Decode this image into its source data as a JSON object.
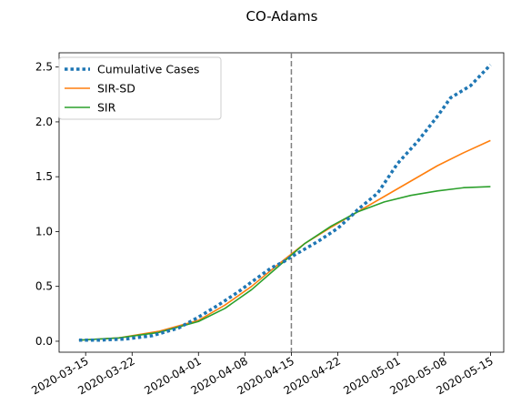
{
  "chart_data": {
    "type": "line",
    "title": "CO-Adams",
    "xlabel": "",
    "ylabel": "",
    "x_range": [
      "2020-03-11",
      "2020-05-17"
    ],
    "ylim": [
      -0.1,
      2.63
    ],
    "yticks": [
      0.0,
      0.5,
      1.0,
      1.5,
      2.0,
      2.5
    ],
    "ytick_labels": [
      "0.0",
      "0.5",
      "1.0",
      "1.5",
      "2.0",
      "2.5"
    ],
    "xticks": [
      "2020-03-15",
      "2020-03-22",
      "2020-04-01",
      "2020-04-08",
      "2020-04-15",
      "2020-04-22",
      "2020-05-01",
      "2020-05-08",
      "2020-05-15"
    ],
    "vline": "2020-04-15",
    "grid": false,
    "legend_position": "top-left",
    "series": [
      {
        "name": "Cumulative Cases",
        "style": "dotted",
        "color": "#1f77b4",
        "x": [
          "2020-03-14",
          "2020-03-17",
          "2020-03-21",
          "2020-03-25",
          "2020-03-29",
          "2020-04-01",
          "2020-04-04",
          "2020-04-07",
          "2020-04-09",
          "2020-04-12",
          "2020-04-14",
          "2020-04-15",
          "2020-04-17",
          "2020-04-19",
          "2020-04-22",
          "2020-04-24",
          "2020-04-25",
          "2020-04-28",
          "2020-05-01",
          "2020-05-04",
          "2020-05-07",
          "2020-05-09",
          "2020-05-12",
          "2020-05-15"
        ],
        "y": [
          0.01,
          0.01,
          0.02,
          0.05,
          0.12,
          0.22,
          0.33,
          0.45,
          0.54,
          0.67,
          0.73,
          0.77,
          0.84,
          0.91,
          1.03,
          1.14,
          1.2,
          1.35,
          1.62,
          1.82,
          2.05,
          2.22,
          2.33,
          2.52
        ]
      },
      {
        "name": "SIR-SD",
        "style": "solid",
        "color": "#ff7f0e",
        "x": [
          "2020-03-14",
          "2020-03-20",
          "2020-03-26",
          "2020-04-01",
          "2020-04-05",
          "2020-04-09",
          "2020-04-13",
          "2020-04-17",
          "2020-04-21",
          "2020-04-25",
          "2020-04-29",
          "2020-05-03",
          "2020-05-07",
          "2020-05-11",
          "2020-05-15"
        ],
        "y": [
          0.01,
          0.03,
          0.09,
          0.19,
          0.33,
          0.5,
          0.7,
          0.89,
          1.04,
          1.18,
          1.32,
          1.46,
          1.6,
          1.72,
          1.83
        ]
      },
      {
        "name": "SIR",
        "style": "solid",
        "color": "#2ca02c",
        "x": [
          "2020-03-14",
          "2020-03-20",
          "2020-03-26",
          "2020-04-01",
          "2020-04-05",
          "2020-04-09",
          "2020-04-13",
          "2020-04-17",
          "2020-04-21",
          "2020-04-25",
          "2020-04-29",
          "2020-05-03",
          "2020-05-07",
          "2020-05-11",
          "2020-05-15"
        ],
        "y": [
          0.01,
          0.03,
          0.08,
          0.18,
          0.3,
          0.47,
          0.68,
          0.89,
          1.05,
          1.18,
          1.27,
          1.33,
          1.37,
          1.4,
          1.41
        ]
      }
    ]
  }
}
